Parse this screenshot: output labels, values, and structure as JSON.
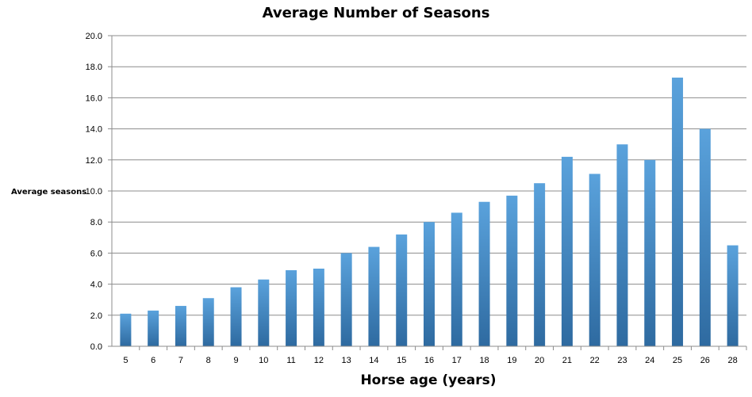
{
  "chart_data": {
    "type": "bar",
    "title": "Average Number of Seasons",
    "xlabel": "Horse age (years)",
    "ylabel": "Average seasons",
    "categories": [
      "5",
      "6",
      "7",
      "8",
      "9",
      "10",
      "11",
      "12",
      "13",
      "14",
      "15",
      "16",
      "17",
      "18",
      "19",
      "20",
      "21",
      "22",
      "23",
      "24",
      "25",
      "26",
      "28"
    ],
    "values": [
      2.1,
      2.3,
      2.6,
      3.1,
      3.8,
      4.3,
      4.9,
      5.0,
      6.0,
      6.4,
      7.2,
      8.0,
      8.6,
      9.3,
      9.7,
      10.5,
      12.2,
      11.1,
      13.0,
      12.0,
      17.3,
      14.0,
      6.5
    ],
    "ylim": [
      0,
      20
    ],
    "yticks": [
      "0.0",
      "2.0",
      "4.0",
      "6.0",
      "8.0",
      "10.0",
      "12.0",
      "14.0",
      "16.0",
      "18.0",
      "20.0"
    ],
    "grid": true,
    "legend": "none",
    "colors": {
      "bar_light": "#5aa2dc",
      "bar_dark": "#2e6aa0",
      "grid": "#8c8c8c"
    }
  }
}
